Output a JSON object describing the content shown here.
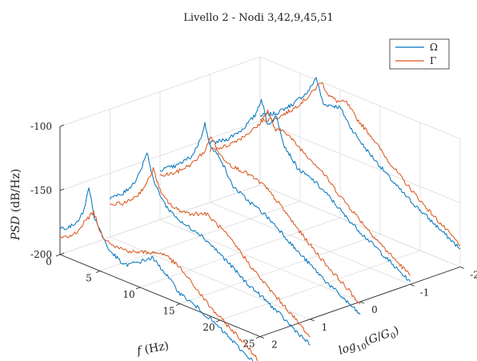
{
  "chart_data": {
    "type": "line",
    "view": "3d-waterfall",
    "title": "Livello 2 - Nodi 3,42,9,45,51",
    "xlabel": "f (Hz)",
    "ylabel": "log10(G/G0)",
    "zlabel": "PSD (dB/Hz)",
    "x_ticks": [
      "0",
      "5",
      "10",
      "15",
      "20",
      "25"
    ],
    "y_ticks": [
      "2",
      "1",
      "0",
      "-1",
      "-2"
    ],
    "z_ticks": [
      "-100",
      "-150",
      "-200"
    ],
    "xlim": [
      0,
      25
    ],
    "ylim": [
      2,
      -2
    ],
    "zlim": [
      -200,
      -100
    ],
    "grid": true,
    "legend_position": "top-right",
    "slices_log10G": [
      2,
      1,
      0,
      -1,
      -2
    ],
    "series": [
      {
        "name": "Ω",
        "color": "#0072BD",
        "slices": [
          {
            "log10G": 2,
            "peak_hz": 3.6,
            "points": [
              [
                0,
                -179
              ],
              [
                1,
                -177
              ],
              [
                2,
                -170
              ],
              [
                3,
                -158
              ],
              [
                3.6,
                -138
              ],
              [
                4.3,
                -160
              ],
              [
                6,
                -180
              ],
              [
                8,
                -188
              ],
              [
                10,
                -180
              ],
              [
                11.5,
                -173
              ],
              [
                13,
                -180
              ],
              [
                15,
                -192
              ],
              [
                17,
                -197
              ],
              [
                19,
                -203
              ],
              [
                21,
                -210
              ],
              [
                23,
                -218
              ],
              [
                25,
                -224
              ]
            ]
          },
          {
            "log10G": 1,
            "peak_hz": 4.6,
            "points": [
              [
                0,
                -169
              ],
              [
                1.5,
                -163
              ],
              [
                3,
                -150
              ],
              [
                4,
                -135
              ],
              [
                4.6,
                -121
              ],
              [
                5.4,
                -142
              ],
              [
                7,
                -158
              ],
              [
                9,
                -166
              ],
              [
                11,
                -168
              ],
              [
                13,
                -175
              ],
              [
                15,
                -183
              ],
              [
                17,
                -192
              ],
              [
                19,
                -198
              ],
              [
                21,
                -205
              ],
              [
                23,
                -213
              ],
              [
                25,
                -220
              ]
            ]
          },
          {
            "log10G": 0,
            "peak_hz": 5.6,
            "points": [
              [
                0,
                -161
              ],
              [
                2,
                -153
              ],
              [
                4,
                -140
              ],
              [
                5,
                -125
              ],
              [
                5.6,
                -111
              ],
              [
                6.4,
                -128
              ],
              [
                7.5,
                -132
              ],
              [
                9,
                -150
              ],
              [
                11,
                -157
              ],
              [
                13,
                -162
              ],
              [
                15,
                -170
              ],
              [
                17,
                -180
              ],
              [
                19,
                -188
              ],
              [
                21,
                -196
              ],
              [
                23,
                -203
              ],
              [
                25,
                -210
              ]
            ]
          },
          {
            "log10G": -1,
            "peak_hz": 6.4,
            "points": [
              [
                0,
                -154
              ],
              [
                2,
                -146
              ],
              [
                4,
                -133
              ],
              [
                5.6,
                -118
              ],
              [
                6.4,
                -103
              ],
              [
                7.2,
                -121
              ],
              [
                8.3,
                -112
              ],
              [
                9.3,
                -132
              ],
              [
                11,
                -146
              ],
              [
                13,
                -150
              ],
              [
                15,
                -158
              ],
              [
                17,
                -168
              ],
              [
                19,
                -176
              ],
              [
                21,
                -183
              ],
              [
                23,
                -191
              ],
              [
                25,
                -198
              ]
            ]
          },
          {
            "log10G": -2,
            "peak_hz": 7.0,
            "points": [
              [
                0,
                -146
              ],
              [
                2,
                -139
              ],
              [
                4,
                -127
              ],
              [
                6,
                -112
              ],
              [
                7,
                -98
              ],
              [
                7.9,
                -117
              ],
              [
                8.9,
                -115
              ],
              [
                10,
                -114
              ],
              [
                11.3,
                -126
              ],
              [
                13,
                -137
              ],
              [
                15,
                -147
              ],
              [
                17,
                -157
              ],
              [
                19,
                -165
              ],
              [
                21,
                -172
              ],
              [
                23,
                -179
              ],
              [
                25,
                -186
              ]
            ]
          }
        ]
      },
      {
        "name": "Γ",
        "color": "#D95319",
        "slices": [
          {
            "log10G": 2,
            "peak_hz": 4.2,
            "points": [
              [
                0,
                -187
              ],
              [
                1,
                -184
              ],
              [
                2,
                -178
              ],
              [
                3,
                -167
              ],
              [
                4.2,
                -156
              ],
              [
                5.2,
                -172
              ],
              [
                7,
                -176
              ],
              [
                9,
                -175
              ],
              [
                11,
                -170
              ],
              [
                13,
                -166
              ],
              [
                15,
                -172
              ],
              [
                17,
                -183
              ],
              [
                19,
                -194
              ],
              [
                21,
                -202
              ],
              [
                23,
                -210
              ],
              [
                25,
                -220
              ]
            ]
          },
          {
            "log10G": 1,
            "peak_hz": 5.4,
            "points": [
              [
                0,
                -175
              ],
              [
                2,
                -168
              ],
              [
                3.5,
                -158
              ],
              [
                4.6,
                -146
              ],
              [
                5.4,
                -133
              ],
              [
                6.4,
                -150
              ],
              [
                8,
                -157
              ],
              [
                10,
                -156
              ],
              [
                12,
                -151
              ],
              [
                14,
                -158
              ],
              [
                16,
                -168
              ],
              [
                18,
                -180
              ],
              [
                20,
                -190
              ],
              [
                22,
                -199
              ],
              [
                25,
                -214
              ]
            ]
          },
          {
            "log10G": 0,
            "peak_hz": 6.4,
            "points": [
              [
                0,
                -166
              ],
              [
                2,
                -158
              ],
              [
                4,
                -146
              ],
              [
                5.6,
                -132
              ],
              [
                6.4,
                -118
              ],
              [
                7.4,
                -130
              ],
              [
                9,
                -135
              ],
              [
                11,
                -136
              ],
              [
                13,
                -140
              ],
              [
                15,
                -150
              ],
              [
                17,
                -162
              ],
              [
                19,
                -173
              ],
              [
                21,
                -183
              ],
              [
                23,
                -192
              ],
              [
                25,
                -202
              ]
            ]
          },
          {
            "log10G": -1,
            "peak_hz": 7.2,
            "points": [
              [
                0,
                -159
              ],
              [
                2,
                -151
              ],
              [
                4,
                -139
              ],
              [
                6,
                -125
              ],
              [
                7.2,
                -110
              ],
              [
                8.2,
                -123
              ],
              [
                9.3,
                -120
              ],
              [
                10.5,
                -126
              ],
              [
                12,
                -132
              ],
              [
                14,
                -140
              ],
              [
                16,
                -152
              ],
              [
                18,
                -162
              ],
              [
                20,
                -172
              ],
              [
                22,
                -181
              ],
              [
                25,
                -193
              ]
            ]
          },
          {
            "log10G": -2,
            "peak_hz": 7.6,
            "points": [
              [
                0,
                -150
              ],
              [
                2,
                -143
              ],
              [
                4,
                -131
              ],
              [
                6,
                -116
              ],
              [
                7.6,
                -100
              ],
              [
                8.6,
                -108
              ],
              [
                9.6,
                -110
              ],
              [
                10.8,
                -108
              ],
              [
                12,
                -117
              ],
              [
                14,
                -127
              ],
              [
                16,
                -140
              ],
              [
                18,
                -151
              ],
              [
                20,
                -161
              ],
              [
                22,
                -170
              ],
              [
                25,
                -183
              ]
            ]
          }
        ]
      }
    ]
  }
}
